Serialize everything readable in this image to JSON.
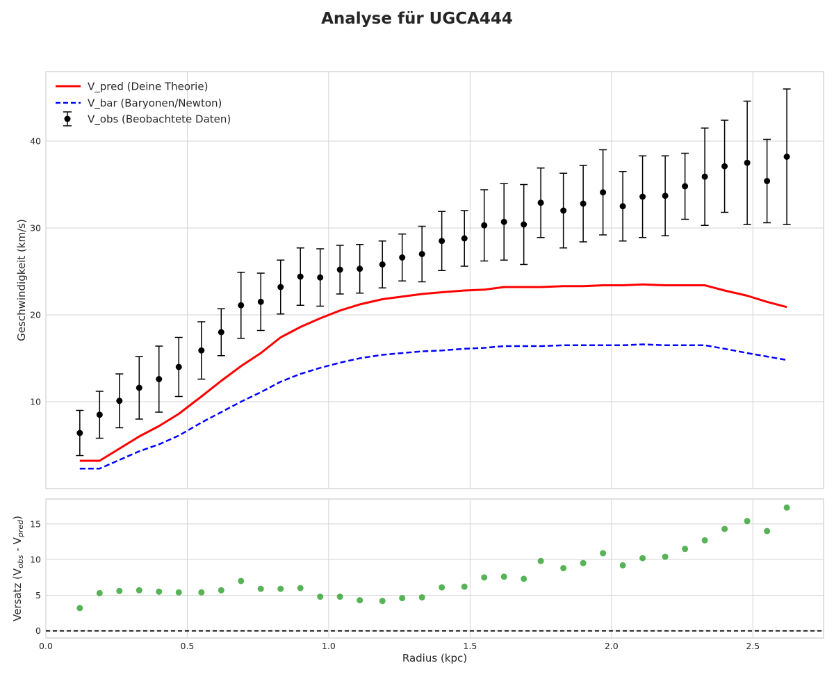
{
  "figure_title": "Analyse für UGCA444",
  "colors": {
    "v_pred": "#ff0000",
    "v_bar": "#0000ff",
    "v_obs": "#000000",
    "residual": "#2ca02c",
    "zero_line": "#000000"
  },
  "chart_data": [
    {
      "type": "line",
      "panel": "top",
      "title": "",
      "xlabel": "",
      "ylabel": "Geschwindigkeit (km/s)",
      "xlim": [
        0.0,
        2.75
      ],
      "ylim": [
        0.0,
        48.0
      ],
      "yticks": [
        10,
        20,
        30,
        40
      ],
      "grid": true,
      "legend_position": "top-left",
      "x": [
        0.12,
        0.19,
        0.26,
        0.33,
        0.4,
        0.47,
        0.55,
        0.62,
        0.69,
        0.76,
        0.83,
        0.9,
        0.97,
        1.04,
        1.11,
        1.19,
        1.26,
        1.33,
        1.4,
        1.48,
        1.55,
        1.62,
        1.69,
        1.75,
        1.83,
        1.9,
        1.97,
        2.04,
        2.11,
        2.19,
        2.26,
        2.33,
        2.4,
        2.48,
        2.55,
        2.62
      ],
      "series": [
        {
          "name": "V_pred (Deine Theorie)",
          "style": "solid",
          "values": [
            3.2,
            3.2,
            4.6,
            6.0,
            7.2,
            8.6,
            10.6,
            12.4,
            14.1,
            15.6,
            17.4,
            18.6,
            19.6,
            20.5,
            21.2,
            21.8,
            22.1,
            22.4,
            22.6,
            22.8,
            22.9,
            23.2,
            23.2,
            23.2,
            23.3,
            23.3,
            23.4,
            23.4,
            23.5,
            23.4,
            23.4,
            23.4,
            22.8,
            22.2,
            21.5,
            20.9
          ]
        },
        {
          "name": "V_bar (Baryonen/Newton)",
          "style": "dashed",
          "values": [
            2.3,
            2.3,
            3.3,
            4.3,
            5.1,
            6.1,
            7.6,
            8.8,
            10.0,
            11.1,
            12.3,
            13.2,
            13.9,
            14.5,
            15.0,
            15.4,
            15.6,
            15.8,
            15.9,
            16.1,
            16.2,
            16.4,
            16.4,
            16.4,
            16.5,
            16.5,
            16.5,
            16.5,
            16.6,
            16.5,
            16.5,
            16.5,
            16.1,
            15.6,
            15.2,
            14.8
          ]
        },
        {
          "name": "V_obs (Beobachtete Daten)",
          "style": "errorbar",
          "values": [
            6.4,
            8.5,
            10.1,
            11.6,
            12.6,
            14.0,
            15.9,
            18.0,
            21.1,
            21.5,
            23.2,
            24.4,
            24.3,
            25.2,
            25.3,
            25.8,
            26.6,
            27.0,
            28.5,
            28.8,
            30.3,
            30.7,
            30.4,
            32.9,
            32.0,
            32.8,
            34.1,
            32.5,
            33.6,
            33.7,
            34.8,
            35.9,
            37.1,
            37.5,
            35.4,
            38.2
          ],
          "errors": [
            2.6,
            2.7,
            3.1,
            3.6,
            3.8,
            3.4,
            3.3,
            2.7,
            3.8,
            3.3,
            3.1,
            3.3,
            3.3,
            2.8,
            2.8,
            2.7,
            2.7,
            3.2,
            3.4,
            3.2,
            4.1,
            4.4,
            4.6,
            4.0,
            4.3,
            4.4,
            4.9,
            4.0,
            4.7,
            4.6,
            3.8,
            5.6,
            5.3,
            7.1,
            4.8,
            7.8
          ]
        }
      ]
    },
    {
      "type": "scatter",
      "panel": "bottom",
      "title": "",
      "xlabel": "Radius (kpc)",
      "ylabel": "Versatz (V_obs - V_pred)",
      "xlim": [
        0.0,
        2.75
      ],
      "ylim": [
        -1.0,
        18.5
      ],
      "xticks": [
        0.0,
        0.5,
        1.0,
        1.5,
        2.0,
        2.5
      ],
      "yticks": [
        0,
        5,
        10,
        15
      ],
      "grid": true,
      "reference_line": 0,
      "x": [
        0.12,
        0.19,
        0.26,
        0.33,
        0.4,
        0.47,
        0.55,
        0.62,
        0.69,
        0.76,
        0.83,
        0.9,
        0.97,
        1.04,
        1.11,
        1.19,
        1.26,
        1.33,
        1.4,
        1.48,
        1.55,
        1.62,
        1.69,
        1.75,
        1.83,
        1.9,
        1.97,
        2.04,
        2.11,
        2.19,
        2.26,
        2.33,
        2.4,
        2.48,
        2.55,
        2.62
      ],
      "values": [
        3.2,
        5.3,
        5.6,
        5.7,
        5.5,
        5.4,
        5.4,
        5.7,
        7.0,
        5.9,
        5.9,
        6.0,
        4.8,
        4.8,
        4.3,
        4.2,
        4.6,
        4.7,
        6.1,
        6.2,
        7.5,
        7.6,
        7.3,
        9.8,
        8.8,
        9.5,
        10.9,
        9.2,
        10.2,
        10.4,
        11.5,
        12.7,
        14.3,
        15.4,
        14.0,
        17.3
      ]
    }
  ]
}
